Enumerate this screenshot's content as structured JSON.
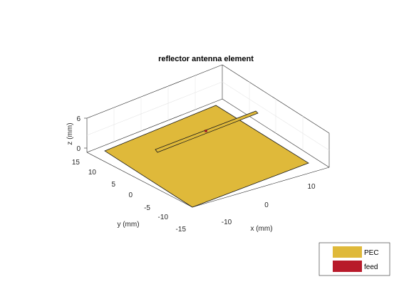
{
  "title": "reflector antenna element",
  "axes": {
    "xlabel": "x (mm)",
    "ylabel": "y (mm)",
    "zlabel": "z (mm)",
    "x_ticks": [
      "-10",
      "0",
      "10"
    ],
    "y_ticks": [
      "15",
      "10",
      "5",
      "0",
      "-5",
      "-10",
      "-15"
    ],
    "z_ticks": [
      "6",
      "0"
    ]
  },
  "legend": {
    "items": [
      {
        "label": "PEC",
        "color": "#dfb93a"
      },
      {
        "label": "feed",
        "color": "#b81a2a"
      }
    ]
  },
  "colors": {
    "pec": "#dfb93a",
    "feed": "#b81a2a",
    "box": "#262626",
    "grid": "#e6e6e6"
  }
}
